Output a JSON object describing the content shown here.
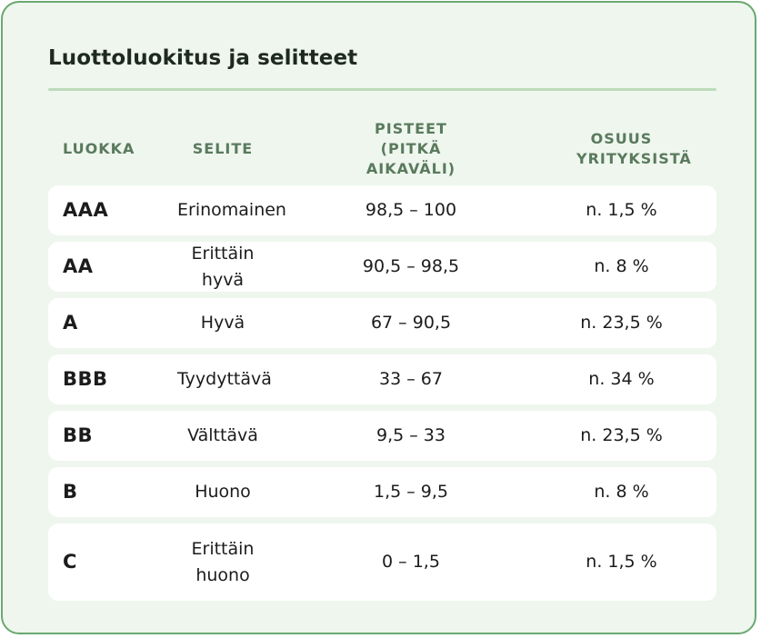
{
  "title": "Luottoluokitus ja selitteet",
  "columns": [
    "LUOKKA",
    "SELITE",
    "PISTEET (PITKÄ AIKAVÄLI)",
    "OSUUS YRITYKSISTÄ"
  ],
  "rows": [
    {
      "class": "AAA",
      "desc": "Erinomainen",
      "points": "98,5 – 100",
      "share": "n. 1,5 %"
    },
    {
      "class": "AA",
      "desc": "Erittäin hyvä",
      "points": "90,5 – 98,5",
      "share": "n. 8 %"
    },
    {
      "class": "A",
      "desc": "Hyvä",
      "points": "67 – 90,5",
      "share": "n. 23,5 %"
    },
    {
      "class": "BBB",
      "desc": "Tyydyttävä",
      "points": "33 – 67",
      "share": "n. 34 %"
    },
    {
      "class": "BB",
      "desc": "Välttävä",
      "points": "9,5 – 33",
      "share": "n. 23,5 %"
    },
    {
      "class": "B",
      "desc": "Huono",
      "points": "1,5 – 9,5",
      "share": "n. 8 %"
    },
    {
      "class": "C",
      "desc": "Erittäin huono",
      "points": "0 – 1,5",
      "share": "n. 1,5 %"
    }
  ]
}
